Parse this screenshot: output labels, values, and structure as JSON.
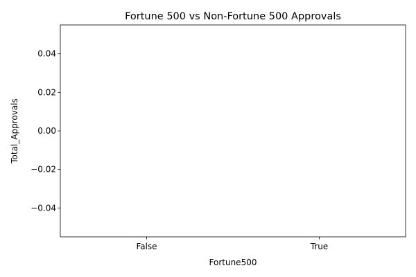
{
  "chart_data": {
    "type": "bar",
    "title": "Fortune 500 vs Non-Fortune 500 Approvals",
    "xlabel": "Fortune500",
    "ylabel": "Total_Approvals",
    "categories": [
      "False",
      "True"
    ],
    "values": [
      0,
      0
    ],
    "ylim": [
      -0.055,
      0.055
    ],
    "yticks": [
      0.04,
      0.02,
      0.0,
      -0.02,
      -0.04
    ],
    "ytick_labels": [
      "0.04",
      "0.02",
      "0.00",
      "−0.02",
      "−0.04"
    ],
    "grid": false,
    "legend": "none"
  }
}
